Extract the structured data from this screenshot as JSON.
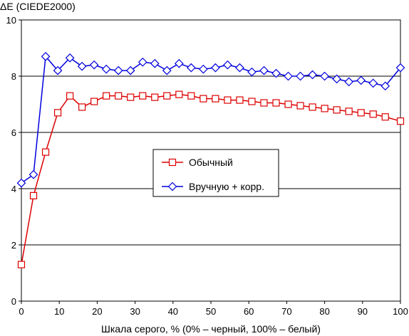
{
  "chart_data": {
    "type": "line",
    "title": "",
    "ylabel": "ΔE (CIEDE2000)",
    "xlabel": "Шкала серого, % (0% – черный, 100% – белый)",
    "xlim": [
      0,
      100
    ],
    "ylim": [
      0,
      10
    ],
    "x_ticks": [
      0,
      10,
      20,
      30,
      40,
      50,
      60,
      70,
      80,
      90,
      100
    ],
    "y_ticks": [
      0,
      2,
      4,
      6,
      8,
      10
    ],
    "grid": "horizontal",
    "legend_placement": "center",
    "x": [
      0,
      3.2,
      6.4,
      9.6,
      12.8,
      16,
      19.2,
      22.4,
      25.6,
      28.8,
      32,
      35.2,
      38.4,
      41.6,
      44.8,
      48,
      51.2,
      54.4,
      57.6,
      60.8,
      64,
      67.2,
      70.4,
      73.6,
      76.8,
      80,
      83.2,
      86.4,
      89.6,
      92.8,
      96,
      100
    ],
    "series": [
      {
        "name": "Обычный",
        "color": "#dd0000",
        "marker": "square",
        "values": [
          1.3,
          3.75,
          5.3,
          6.7,
          7.3,
          6.9,
          7.1,
          7.3,
          7.3,
          7.25,
          7.3,
          7.25,
          7.3,
          7.35,
          7.3,
          7.2,
          7.2,
          7.15,
          7.15,
          7.1,
          7.05,
          7.05,
          7.0,
          6.95,
          6.9,
          6.85,
          6.8,
          6.75,
          6.7,
          6.65,
          6.55,
          6.4
        ]
      },
      {
        "name": "Вручную + корр.",
        "color": "#0000dd",
        "marker": "diamond",
        "values": [
          4.2,
          4.5,
          8.7,
          8.2,
          8.65,
          8.35,
          8.4,
          8.25,
          8.2,
          8.2,
          8.5,
          8.45,
          8.2,
          8.45,
          8.3,
          8.25,
          8.3,
          8.4,
          8.3,
          8.15,
          8.2,
          8.1,
          8.0,
          8.0,
          8.05,
          8.0,
          7.9,
          7.8,
          7.85,
          7.75,
          7.65,
          8.3
        ]
      }
    ]
  }
}
